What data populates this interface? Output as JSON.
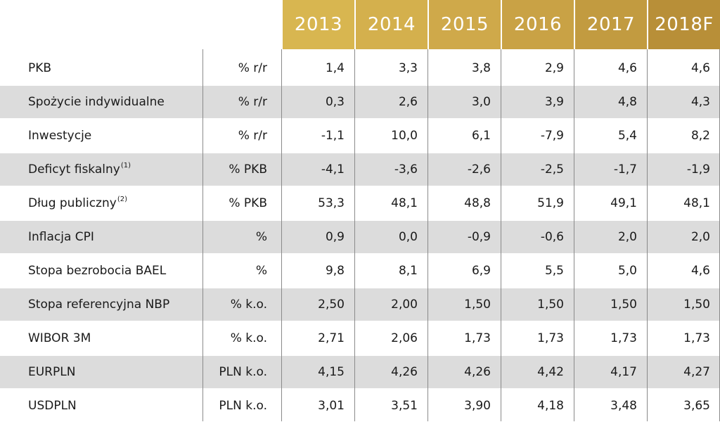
{
  "years": [
    "2013",
    "2014",
    "2015",
    "2016",
    "2017",
    "2018F"
  ],
  "header_colors": [
    "#d8b650",
    "#d4b04d",
    "#cfa94a",
    "#c9a245",
    "#c29b40",
    "#b88f38"
  ],
  "rows": [
    {
      "label": "PKB",
      "sup": "",
      "unit": "% r/r",
      "values": [
        "1,4",
        "3,3",
        "3,8",
        "2,9",
        "4,6",
        "4,6"
      ]
    },
    {
      "label": "Spożycie indywidualne",
      "sup": "",
      "unit": "% r/r",
      "values": [
        "0,3",
        "2,6",
        "3,0",
        "3,9",
        "4,8",
        "4,3"
      ]
    },
    {
      "label": "Inwestycje",
      "sup": "",
      "unit": "% r/r",
      "values": [
        "-1,1",
        "10,0",
        "6,1",
        "-7,9",
        "5,4",
        "8,2"
      ]
    },
    {
      "label": "Deficyt fiskalny",
      "sup": "(1)",
      "unit": "% PKB",
      "values": [
        "-4,1",
        "-3,6",
        "-2,6",
        "-2,5",
        "-1,7",
        "-1,9"
      ]
    },
    {
      "label": "Dług publiczny",
      "sup": "(2)",
      "unit": "% PKB",
      "values": [
        "53,3",
        "48,1",
        "48,8",
        "51,9",
        "49,1",
        "48,1"
      ]
    },
    {
      "label": "Inflacja CPI",
      "sup": "",
      "unit": "%",
      "values": [
        "0,9",
        "0,0",
        "-0,9",
        "-0,6",
        "2,0",
        "2,0"
      ]
    },
    {
      "label": "Stopa bezrobocia BAEL",
      "sup": "",
      "unit": "%",
      "values": [
        "9,8",
        "8,1",
        "6,9",
        "5,5",
        "5,0",
        "4,6"
      ]
    },
    {
      "label": "Stopa referencyjna NBP",
      "sup": "",
      "unit": "% k.o.",
      "values": [
        "2,50",
        "2,00",
        "1,50",
        "1,50",
        "1,50",
        "1,50"
      ]
    },
    {
      "label": "WIBOR 3M",
      "sup": "",
      "unit": "% k.o.",
      "values": [
        "2,71",
        "2,06",
        "1,73",
        "1,73",
        "1,73",
        "1,73"
      ]
    },
    {
      "label": "EURPLN",
      "sup": "",
      "unit": "PLN k.o.",
      "values": [
        "4,15",
        "4,26",
        "4,26",
        "4,42",
        "4,17",
        "4,27"
      ]
    },
    {
      "label": "USDPLN",
      "sup": "",
      "unit": "PLN k.o.",
      "values": [
        "3,01",
        "3,51",
        "3,90",
        "4,18",
        "3,48",
        "3,65"
      ]
    }
  ]
}
